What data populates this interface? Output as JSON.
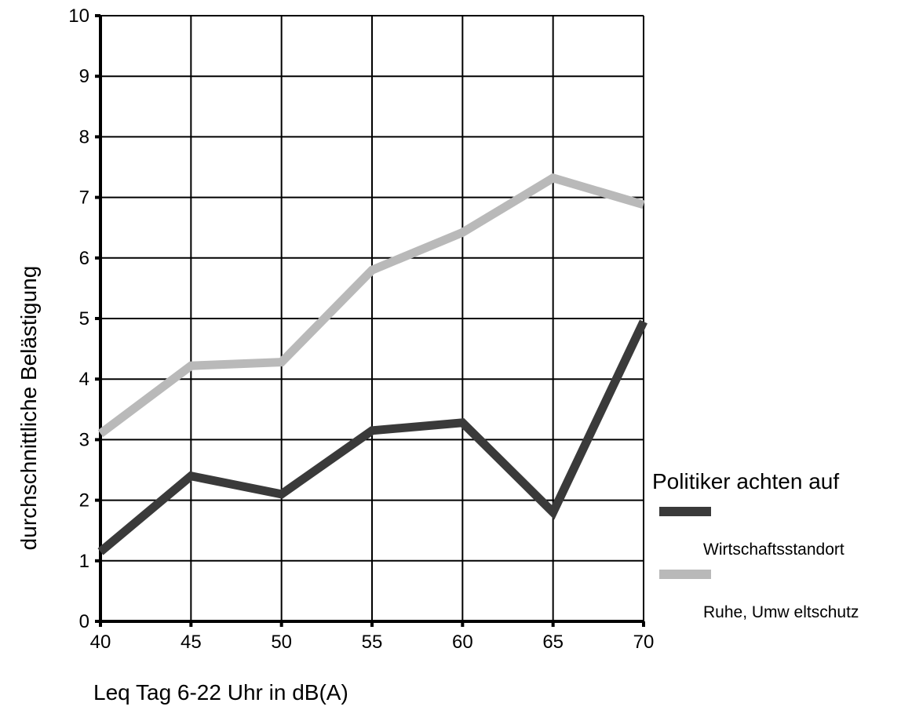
{
  "chart_data": {
    "type": "line",
    "x": [
      40,
      45,
      50,
      55,
      60,
      65,
      70
    ],
    "xlabel": "Leq Tag 6-22  Uhr in dB(A)",
    "ylabel": "durchschnittliche Belästigung",
    "xlim": [
      40,
      70
    ],
    "ylim": [
      0,
      10
    ],
    "xticks": [
      40,
      45,
      50,
      55,
      60,
      65,
      70
    ],
    "yticks": [
      0,
      1,
      2,
      3,
      4,
      5,
      6,
      7,
      8,
      9,
      10
    ],
    "grid": true,
    "legend": {
      "title": "Politiker achten auf",
      "placement": "right"
    },
    "series": [
      {
        "name": "Wirtschaftsstandort",
        "color": "#3a3a3a",
        "values": [
          1.15,
          2.4,
          2.1,
          3.15,
          3.28,
          1.8,
          4.95
        ]
      },
      {
        "name": "Ruhe, Umw eltschutz",
        "color": "#b9b9b9",
        "values": [
          3.1,
          4.22,
          4.28,
          5.8,
          6.42,
          7.32,
          6.88
        ]
      }
    ]
  }
}
